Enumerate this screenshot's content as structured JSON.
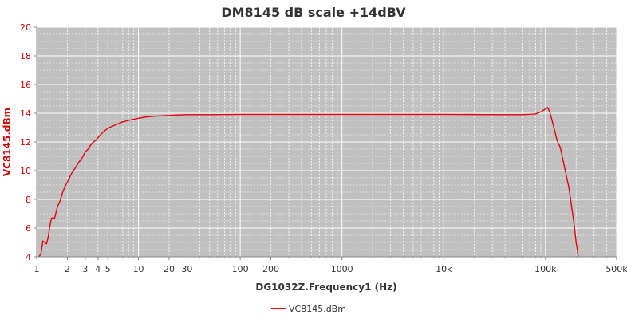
{
  "chart_data": {
    "type": "line",
    "title": "DM8145 dB scale  +14dBV",
    "xlabel": "DG1032Z.Frequency1 (Hz)",
    "ylabel": "VC8145.dBm",
    "xscale": "log",
    "xlim": [
      1,
      500000
    ],
    "ylim": [
      4,
      20
    ],
    "x_tick_values": [
      1,
      2,
      3,
      4,
      5,
      10,
      20,
      30,
      100,
      200,
      1000,
      10000,
      100000,
      500000
    ],
    "x_tick_labels": [
      "1",
      "2",
      "3",
      "4",
      "5",
      "10",
      "20",
      "30",
      "100",
      "200",
      "1000",
      "10k",
      "100k",
      "500k"
    ],
    "y_ticks": [
      4,
      6,
      8,
      10,
      12,
      14,
      16,
      18,
      20
    ],
    "y_tick_labels": [
      "4",
      "6",
      "8",
      "10",
      "12",
      "14",
      "16",
      "18",
      "20"
    ],
    "grid": true,
    "legend_position": "bottom-center",
    "colors": {
      "series": "#e8000b",
      "plot_background": "#c0c0c0",
      "grid": "#ffffff",
      "y_axis_text": "#cc0000"
    },
    "series": [
      {
        "name": "VC8145.dBm",
        "x": [
          1.05,
          1.1,
          1.15,
          1.2,
          1.25,
          1.3,
          1.35,
          1.4,
          1.5,
          1.6,
          1.7,
          1.8,
          1.9,
          2.0,
          2.2,
          2.4,
          2.6,
          2.8,
          3.0,
          3.2,
          3.4,
          3.6,
          3.8,
          4.0,
          4.5,
          5,
          6,
          7,
          8,
          10,
          12,
          15,
          20,
          30,
          50,
          100,
          200,
          500,
          1000,
          2000,
          5000,
          10000,
          20000,
          40000,
          60000,
          80000,
          90000,
          100000,
          105000,
          110000,
          120000,
          130000,
          140000,
          150000,
          170000,
          190000,
          200000,
          210000
        ],
        "values": [
          4.0,
          4.2,
          5.1,
          5.0,
          4.9,
          5.4,
          6.2,
          6.7,
          6.7,
          7.5,
          7.9,
          8.5,
          8.9,
          9.2,
          9.8,
          10.2,
          10.6,
          10.9,
          11.3,
          11.5,
          11.8,
          12.0,
          12.1,
          12.3,
          12.7,
          12.95,
          13.2,
          13.4,
          13.5,
          13.65,
          13.75,
          13.8,
          13.85,
          13.9,
          13.9,
          13.92,
          13.92,
          13.92,
          13.92,
          13.92,
          13.92,
          13.92,
          13.91,
          13.9,
          13.9,
          13.95,
          14.1,
          14.3,
          14.4,
          14.1,
          13.1,
          12.1,
          11.6,
          10.6,
          8.8,
          6.4,
          5.0,
          4.0
        ]
      }
    ]
  }
}
